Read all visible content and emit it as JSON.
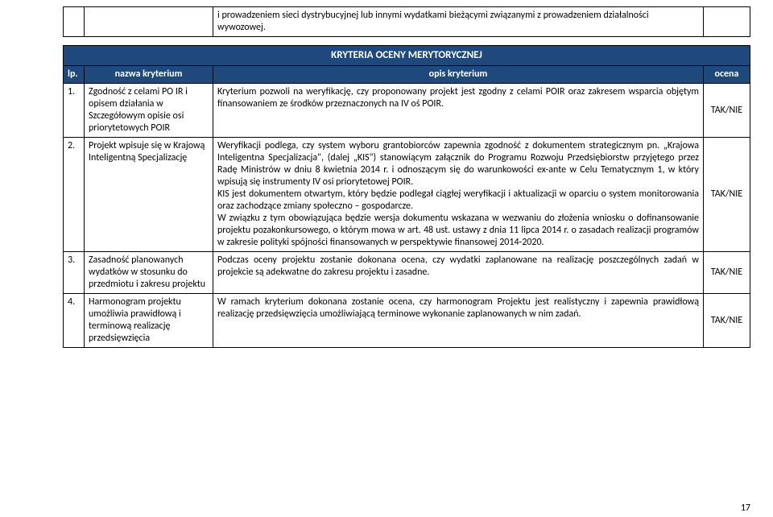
{
  "top": {
    "text": "i prowadzeniem sieci dystrybucyjnej lub innymi wydatkami bieżącymi związanymi z prowadzeniem działalności wywozowej."
  },
  "section_header": "KRYTERIA OCENY MERYTORYCZNEJ",
  "columns": {
    "lp": "lp.",
    "name": "nazwa kryterium",
    "desc": "opis kryterium",
    "ocena": "ocena"
  },
  "rows": [
    {
      "lp": "1.",
      "name": "Zgodność z celami PO IR i opisem działania w Szczegółowym opisie osi priorytetowych POIR",
      "desc": "Kryterium pozwoli na weryfikację, czy proponowany projekt jest zgodny z celami POIR oraz zakresem wsparcia objętym finansowaniem ze środków przeznaczonych na IV oś POIR.",
      "ocena": "TAK/NIE"
    },
    {
      "lp": "2.",
      "name": "Projekt wpisuje się w Krajową Inteligentną Specjalizację",
      "desc": "Weryfikacji podlega, czy system wyboru grantobiorców zapewnia zgodność z dokumentem strategicznym pn. „Krajowa Inteligentna Specjalizacja\", (dalej „KIS\") stanowiącym załącznik do Programu Rozwoju Przedsiębiorstw przyjętego przez Radę Ministrów w dniu 8 kwietnia 2014 r. i odnoszącym się do warunkowości ex-ante w Celu Tematycznym 1, w który wpisują się instrumenty IV osi priorytetowej POIR.\nKIS jest dokumentem otwartym, który będzie podlegał ciągłej weryfikacji i aktualizacji w oparciu o system monitorowania oraz zachodzące zmiany społeczno – gospodarcze.\nW związku z tym obowiązująca będzie wersja dokumentu wskazana w wezwaniu do złożenia wniosku o dofinansowanie projektu pozakonkursowego, o którym mowa w art. 48 ust. ustawy z dnia 11 lipca 2014 r. o zasadach realizacji programów w zakresie polityki spójności finansowanych w perspektywie finansowej 2014-2020.",
      "ocena": "TAK/NIE"
    },
    {
      "lp": "3.",
      "name": "Zasadność planowanych wydatków w stosunku do przedmiotu i zakresu projektu",
      "desc": "Podczas oceny projektu zostanie dokonana ocena, czy wydatki zaplanowane na realizację poszczególnych zadań w projekcie są adekwatne do zakresu projektu i zasadne.",
      "ocena": "TAK/NIE"
    },
    {
      "lp": "4.",
      "name": "Harmonogram projektu umożliwia prawidłową i terminową realizację przedsięwzięcia",
      "desc": "W ramach kryterium dokonana zostanie ocena, czy harmonogram Projektu jest realistyczny i zapewnia prawidłową realizację przedsięwzięcia umożliwiającą terminowe wykonanie zaplanowanych w nim zadań.",
      "ocena": "TAK/NIE"
    }
  ],
  "page_number": "17"
}
